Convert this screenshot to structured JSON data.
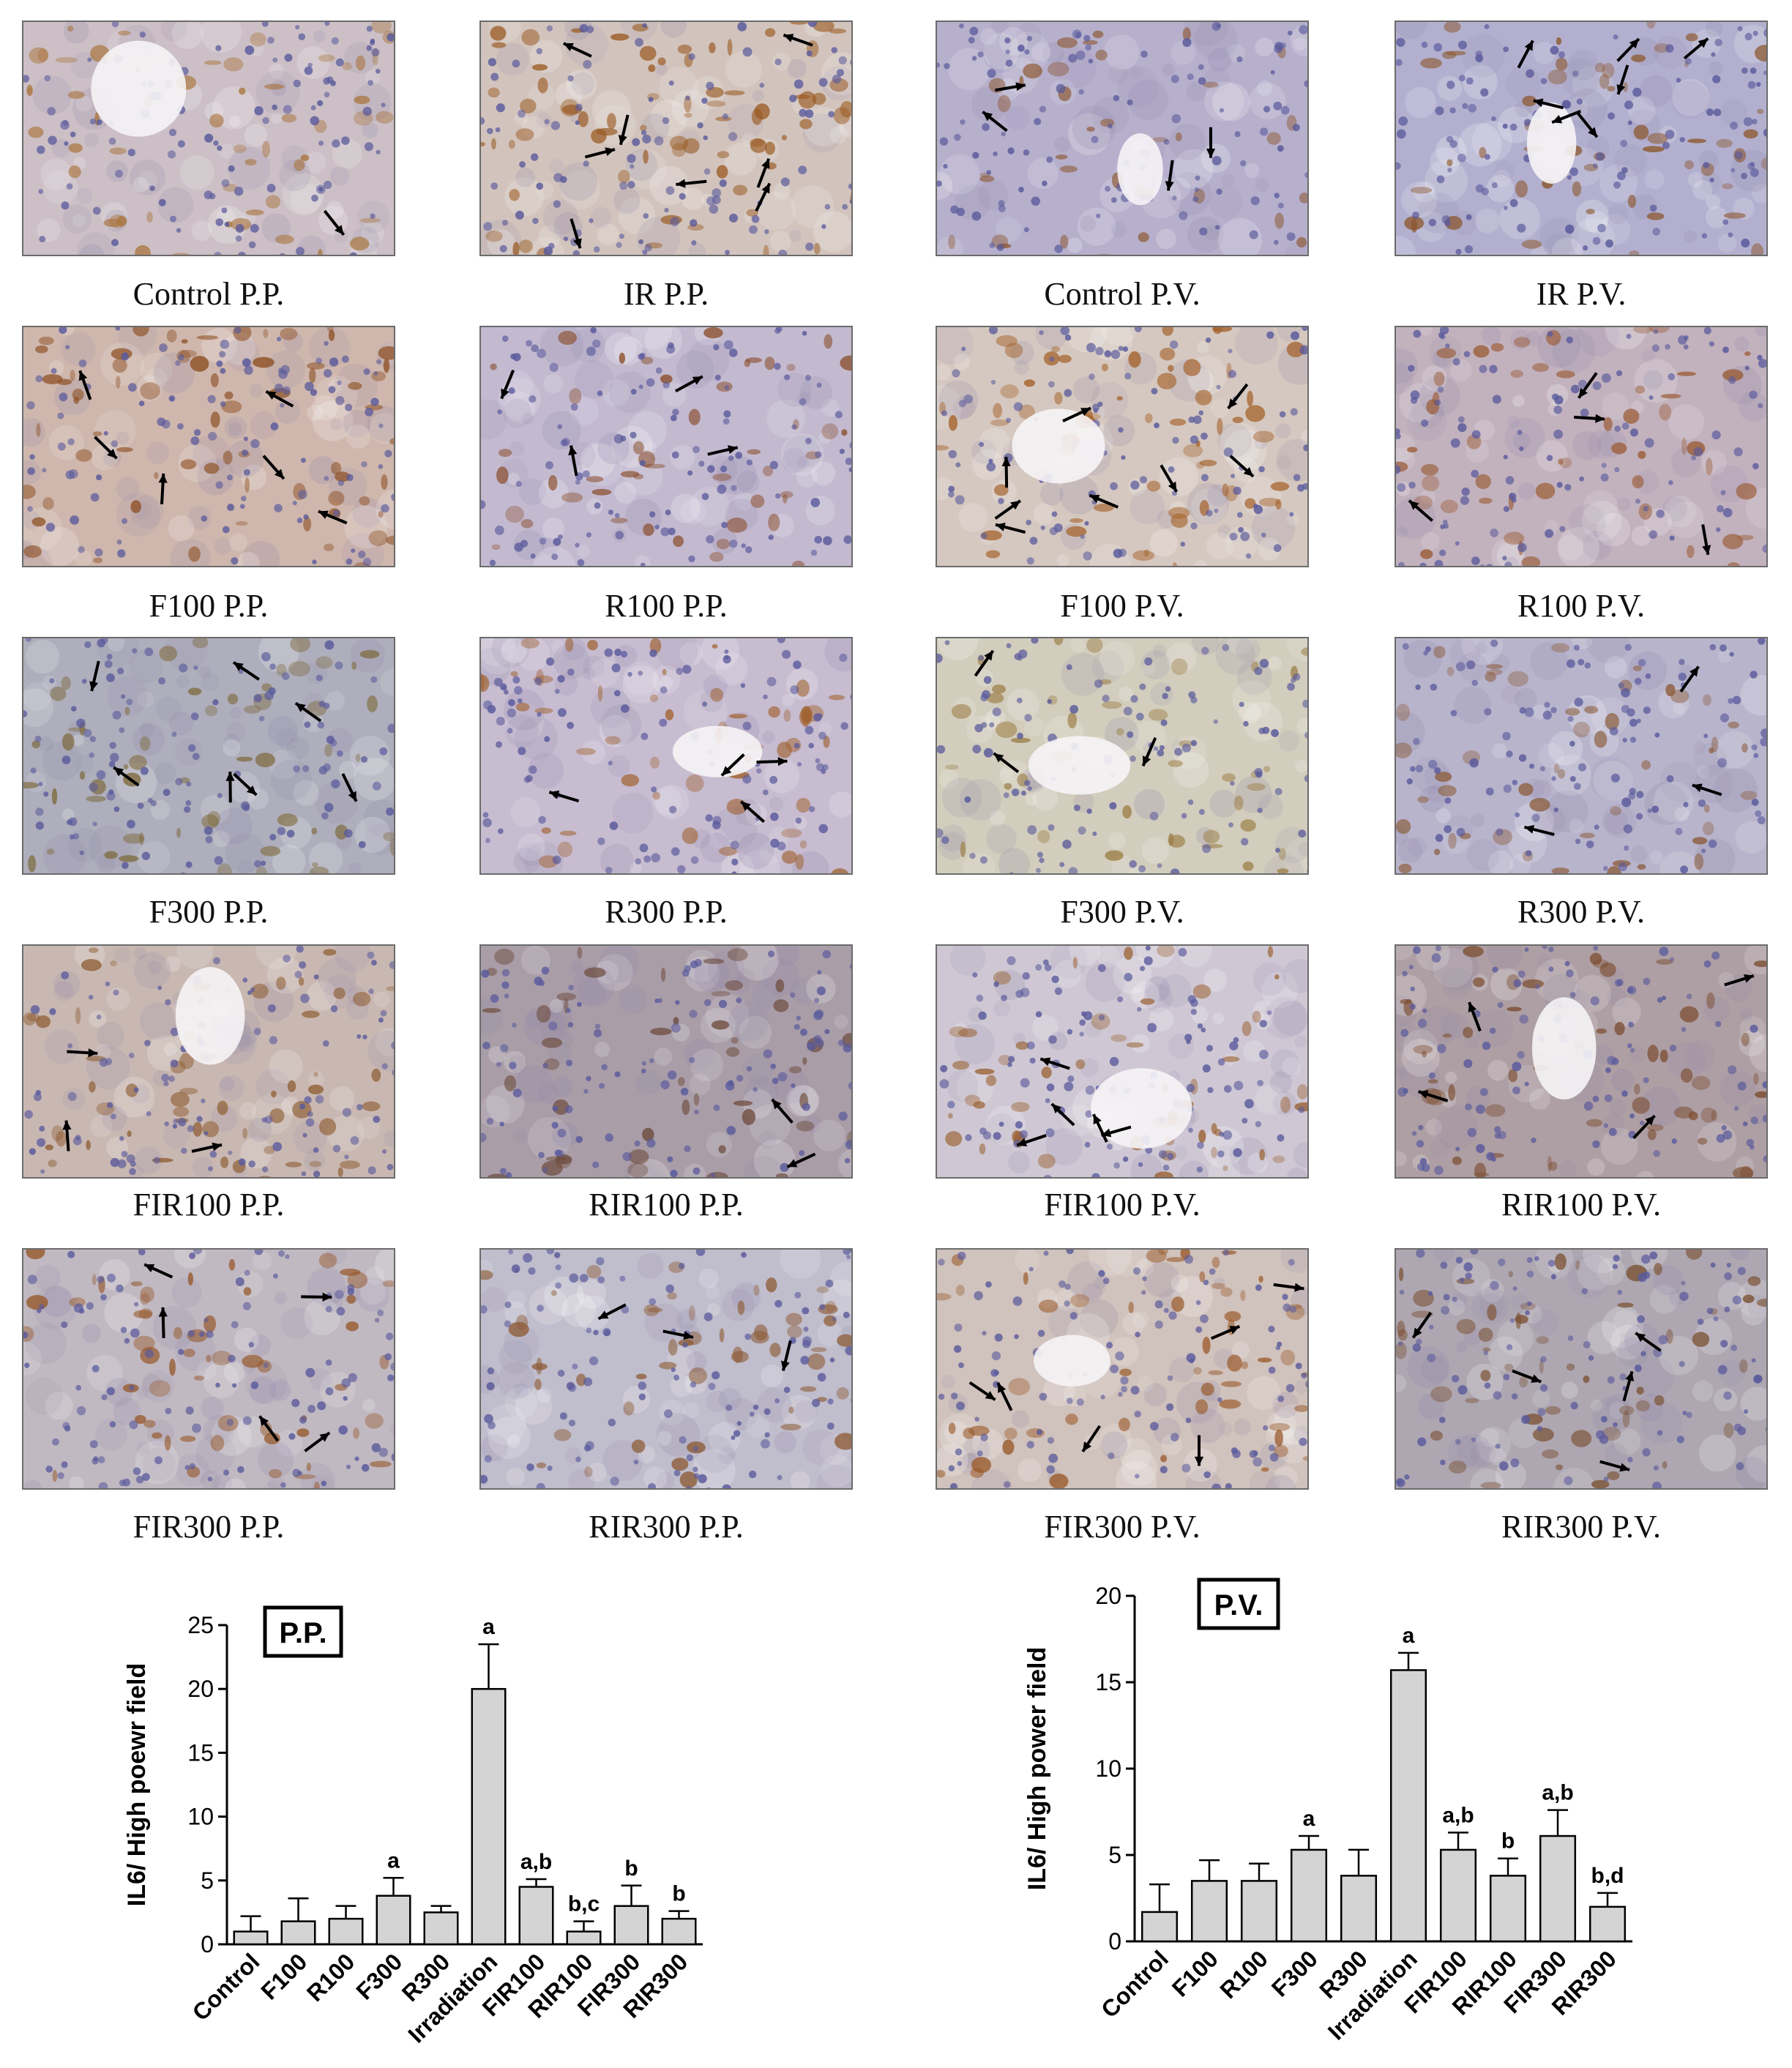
{
  "panels": [
    {
      "label": "Control P.P.",
      "base": "#ccc0c6",
      "stain": "#a9743d",
      "density": 0.55,
      "arrows": 1
    },
    {
      "label": "IR P.P.",
      "base": "#d2c4bd",
      "stain": "#9a5a22",
      "density": 0.9,
      "arrows": 8
    },
    {
      "label": "Control P.V.",
      "base": "#b6b0cc",
      "stain": "#8e5a36",
      "density": 0.25,
      "arrows": 4
    },
    {
      "label": "IR P.V.",
      "base": "#b3b0cf",
      "stain": "#8b552a",
      "density": 0.55,
      "arrows": 7
    },
    {
      "label": "F100 P.P.",
      "base": "#cfb7ad",
      "stain": "#8d4f22",
      "density": 0.8,
      "arrows": 6
    },
    {
      "label": "R100 P.P.",
      "base": "#c3bad0",
      "stain": "#8a4d2a",
      "density": 0.45,
      "arrows": 4
    },
    {
      "label": "F100 P.V.",
      "base": "#d5c8c0",
      "stain": "#a4622a",
      "density": 0.7,
      "arrows": 8
    },
    {
      "label": "R100 P.V.",
      "base": "#c2b2be",
      "stain": "#9a5b34",
      "density": 0.5,
      "arrows": 4
    },
    {
      "label": "F300 P.P.",
      "base": "#aeaebc",
      "stain": "#7e6a3d",
      "density": 0.6,
      "arrows": 7
    },
    {
      "label": "R300 P.P.",
      "base": "#c7bcd0",
      "stain": "#a0612e",
      "density": 0.55,
      "arrows": 4
    },
    {
      "label": "F300 P.V.",
      "base": "#d2cdbd",
      "stain": "#9c7f47",
      "density": 0.35,
      "arrows": 3
    },
    {
      "label": "R300 P.V.",
      "base": "#b8b4cc",
      "stain": "#8a5a36",
      "density": 0.5,
      "arrows": 3
    },
    {
      "label": "FIR100 P.P.",
      "base": "#c9b8b2",
      "stain": "#8f5f35",
      "density": 0.65,
      "arrows": 3
    },
    {
      "label": "RIR100 P.P.",
      "base": "#a99da8",
      "stain": "#6c4a3a",
      "density": 0.45,
      "arrows": 2
    },
    {
      "label": "FIR100 P.V.",
      "base": "#cfc8d4",
      "stain": "#9a6131",
      "density": 0.55,
      "arrows": 5
    },
    {
      "label": "RIR100 P.V.",
      "base": "#ae9fa4",
      "stain": "#7a4a2c",
      "density": 0.55,
      "arrows": 4
    },
    {
      "label": "FIR300 P.P.",
      "base": "#c1b9c2",
      "stain": "#96582a",
      "density": 0.6,
      "arrows": 5
    },
    {
      "label": "RIR300 P.P.",
      "base": "#c0bdcc",
      "stain": "#8d5c36",
      "density": 0.55,
      "arrows": 3
    },
    {
      "label": "FIR300 P.V.",
      "base": "#d0c2bc",
      "stain": "#9a5a2a",
      "density": 0.6,
      "arrows": 6
    },
    {
      "label": "RIR300 P.V.",
      "base": "#aea7b2",
      "stain": "#7b5133",
      "density": 0.6,
      "arrows": 5
    }
  ],
  "chart_data": [
    {
      "type": "bar",
      "title": "P.P.",
      "ylabel": "IL6/ High poewr field",
      "ylim": [
        0,
        25
      ],
      "yticks": [
        0,
        5,
        10,
        15,
        20,
        25
      ],
      "categories": [
        "Control",
        "F100",
        "R100",
        "F300",
        "R300",
        "Irradiation",
        "FIR100",
        "RIR100",
        "FIR300",
        "RIR300"
      ],
      "values": [
        1.0,
        1.8,
        2.0,
        3.8,
        2.5,
        20.0,
        4.5,
        1.0,
        3.0,
        2.0
      ],
      "errors": [
        1.2,
        1.8,
        1.0,
        1.4,
        0.5,
        3.5,
        0.6,
        0.8,
        1.6,
        0.6
      ],
      "annotations": [
        "",
        "",
        "",
        "a",
        "",
        "a",
        "a,b",
        "b,c",
        "b",
        "b"
      ],
      "bar_color": "#d4d4d4"
    },
    {
      "type": "bar",
      "title": "P.V.",
      "ylabel": "IL6/ High power field",
      "ylim": [
        0,
        20
      ],
      "yticks": [
        0,
        5,
        10,
        15,
        20
      ],
      "categories": [
        "Control",
        "F100",
        "R100",
        "F300",
        "R300",
        "Irradiation",
        "FIR100",
        "RIR100",
        "FIR300",
        "RIR300"
      ],
      "values": [
        1.7,
        3.5,
        3.5,
        5.3,
        3.8,
        15.7,
        5.3,
        3.8,
        6.1,
        2.0
      ],
      "errors": [
        1.6,
        1.2,
        1.0,
        0.8,
        1.5,
        1.0,
        1.0,
        1.0,
        1.5,
        0.8
      ],
      "annotations": [
        "",
        "",
        "",
        "a",
        "",
        "a",
        "a,b",
        "b",
        "a,b",
        "b,d"
      ],
      "bar_color": "#d4d4d4"
    }
  ]
}
